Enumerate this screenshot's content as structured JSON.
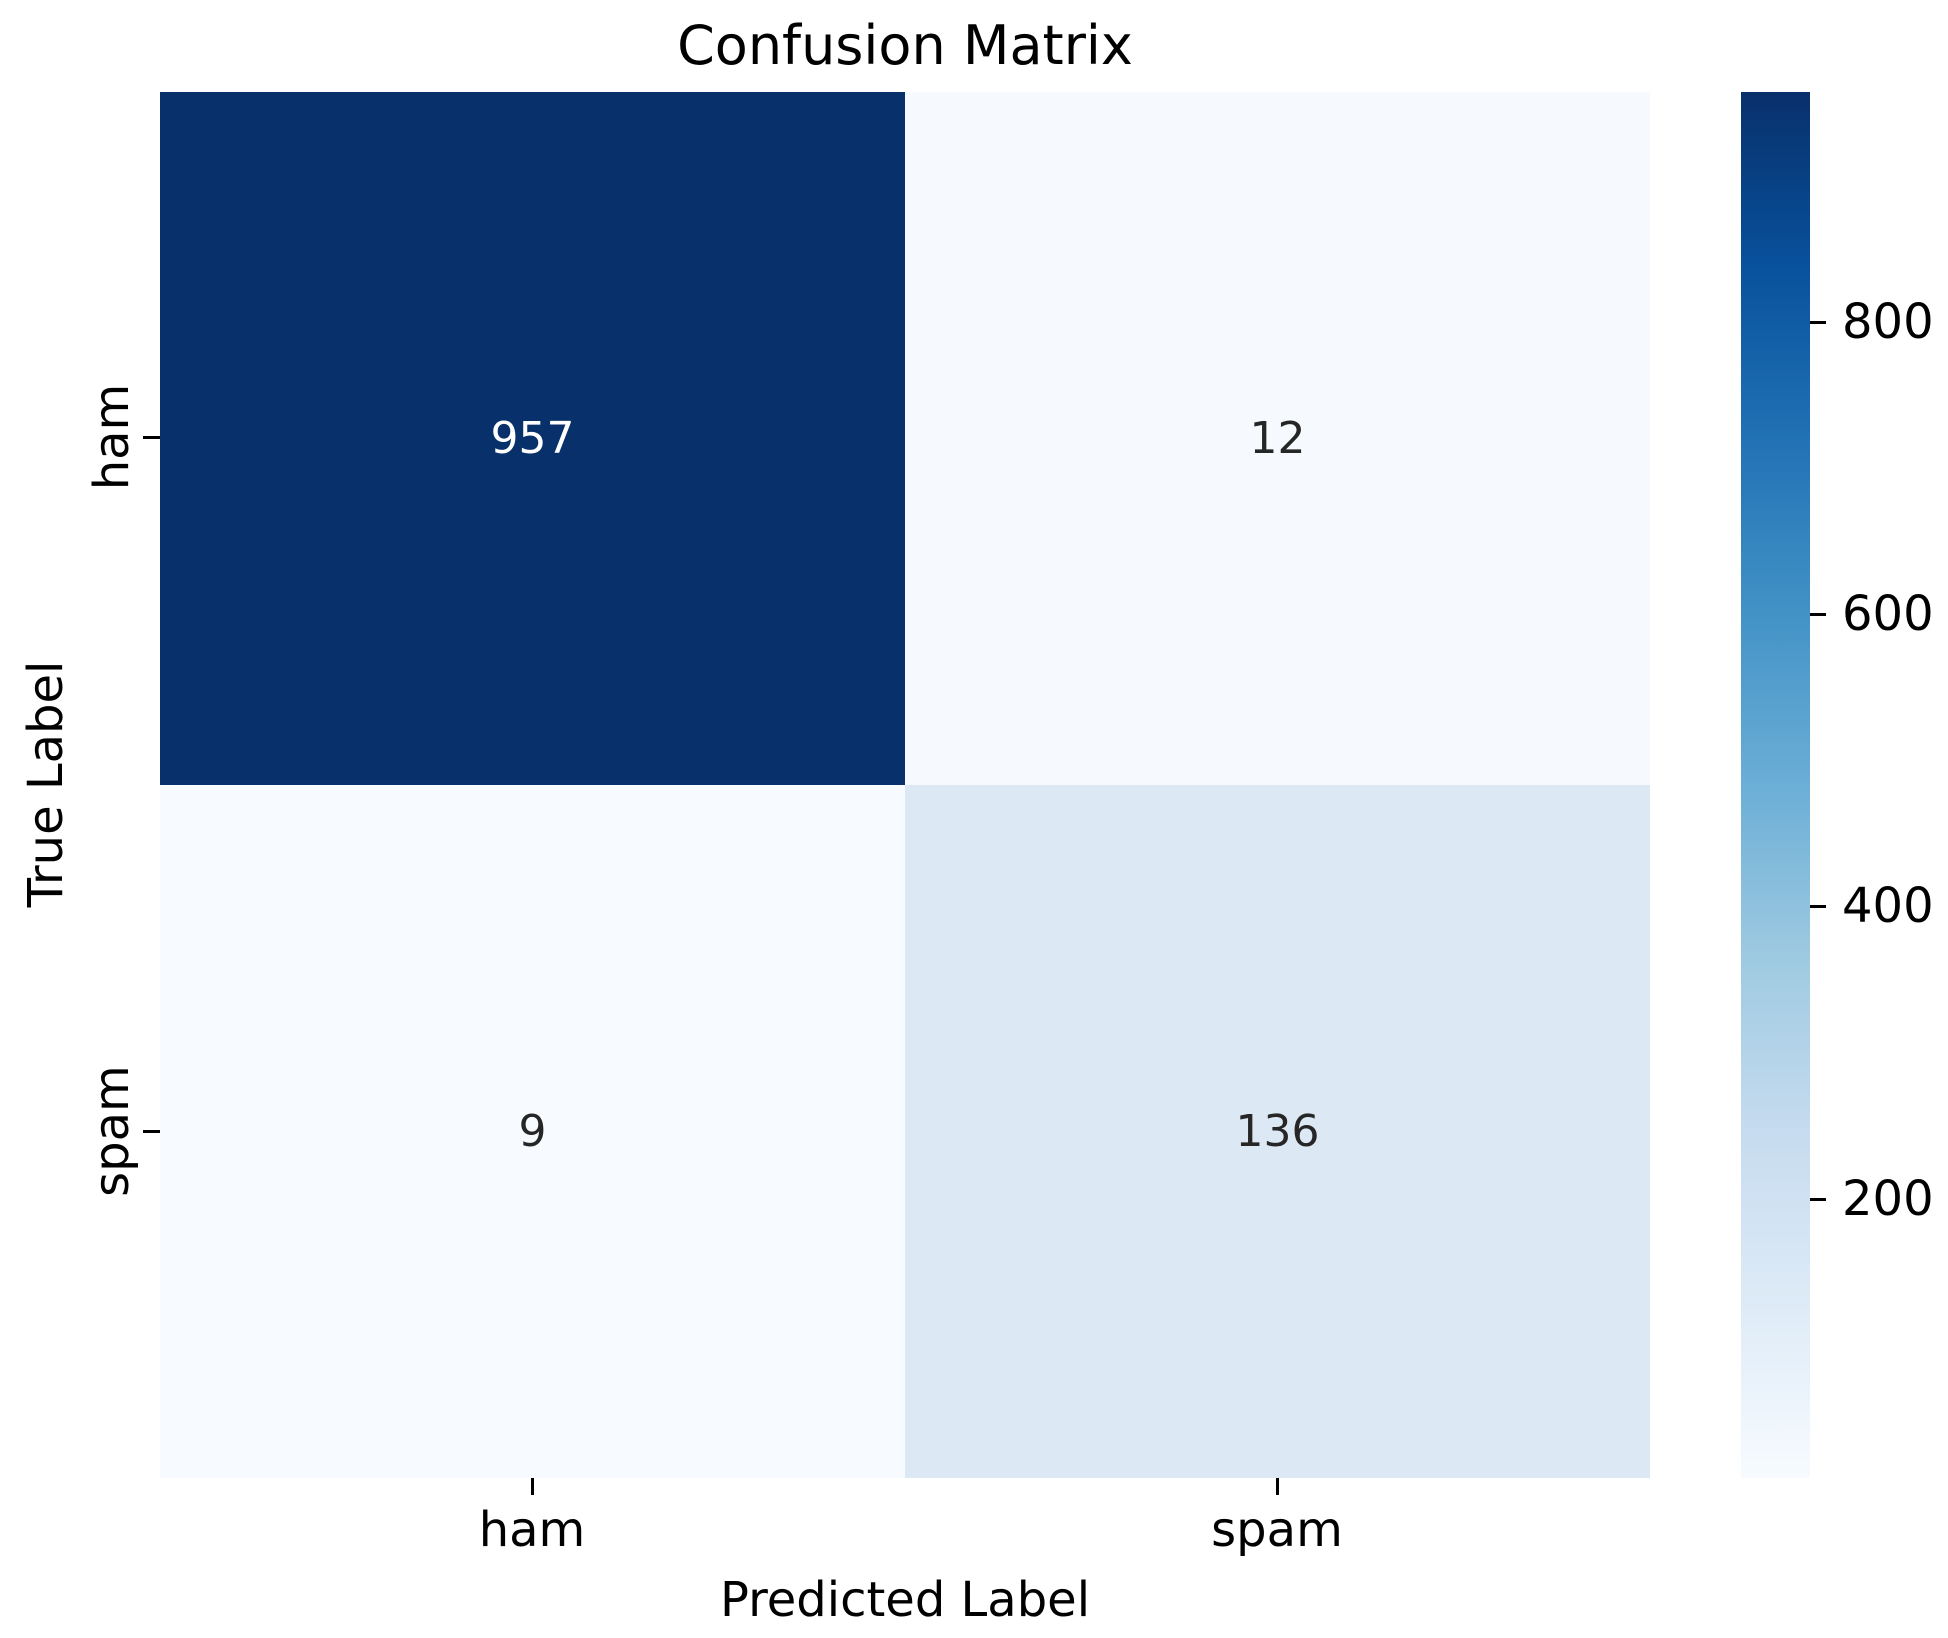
{
  "title": "Confusion Matrix",
  "axes": {
    "x_label": "Predicted Label",
    "y_label": "True Label",
    "x_ticks": [
      "ham",
      "spam"
    ],
    "y_ticks": [
      "ham",
      "spam"
    ]
  },
  "chart_data": {
    "type": "heatmap",
    "title": "Confusion Matrix",
    "xlabel": "Predicted Label",
    "ylabel": "True Label",
    "x_categories": [
      "ham",
      "spam"
    ],
    "y_categories": [
      "ham",
      "spam"
    ],
    "matrix": [
      [
        957,
        12
      ],
      [
        9,
        136
      ]
    ],
    "colormap": "Blues",
    "vmin": 9,
    "vmax": 957,
    "grid": false,
    "legend_position": "right-colorbar",
    "cells": [
      {
        "true_label": "ham",
        "pred_label": "ham",
        "value": "957",
        "bg": "#08306b",
        "text_color": "#ffffff"
      },
      {
        "true_label": "ham",
        "pred_label": "spam",
        "value": "12",
        "bg": "#f6fafe",
        "text_color": "#262626"
      },
      {
        "true_label": "spam",
        "pred_label": "ham",
        "value": "9",
        "bg": "#f7fbff",
        "text_color": "#262626"
      },
      {
        "true_label": "spam",
        "pred_label": "spam",
        "value": "136",
        "bg": "#dce9f5",
        "text_color": "#262626"
      }
    ],
    "colorbar": {
      "top_value": 957,
      "bottom_value": 9,
      "ticks": [
        {
          "label": "800",
          "pos_pct": 16.56
        },
        {
          "label": "600",
          "pos_pct": 37.66
        },
        {
          "label": "400",
          "pos_pct": 58.76
        },
        {
          "label": "200",
          "pos_pct": 79.86
        }
      ],
      "gradient_stops": [
        {
          "color": "#08306b",
          "pos": 0
        },
        {
          "color": "#08519c",
          "pos": 12.5
        },
        {
          "color": "#2171b5",
          "pos": 25
        },
        {
          "color": "#4292c6",
          "pos": 37.5
        },
        {
          "color": "#6baed6",
          "pos": 50
        },
        {
          "color": "#9ecae1",
          "pos": 62.5
        },
        {
          "color": "#c6dbef",
          "pos": 75
        },
        {
          "color": "#deebf7",
          "pos": 87.5
        },
        {
          "color": "#f7fbff",
          "pos": 100
        }
      ]
    }
  }
}
